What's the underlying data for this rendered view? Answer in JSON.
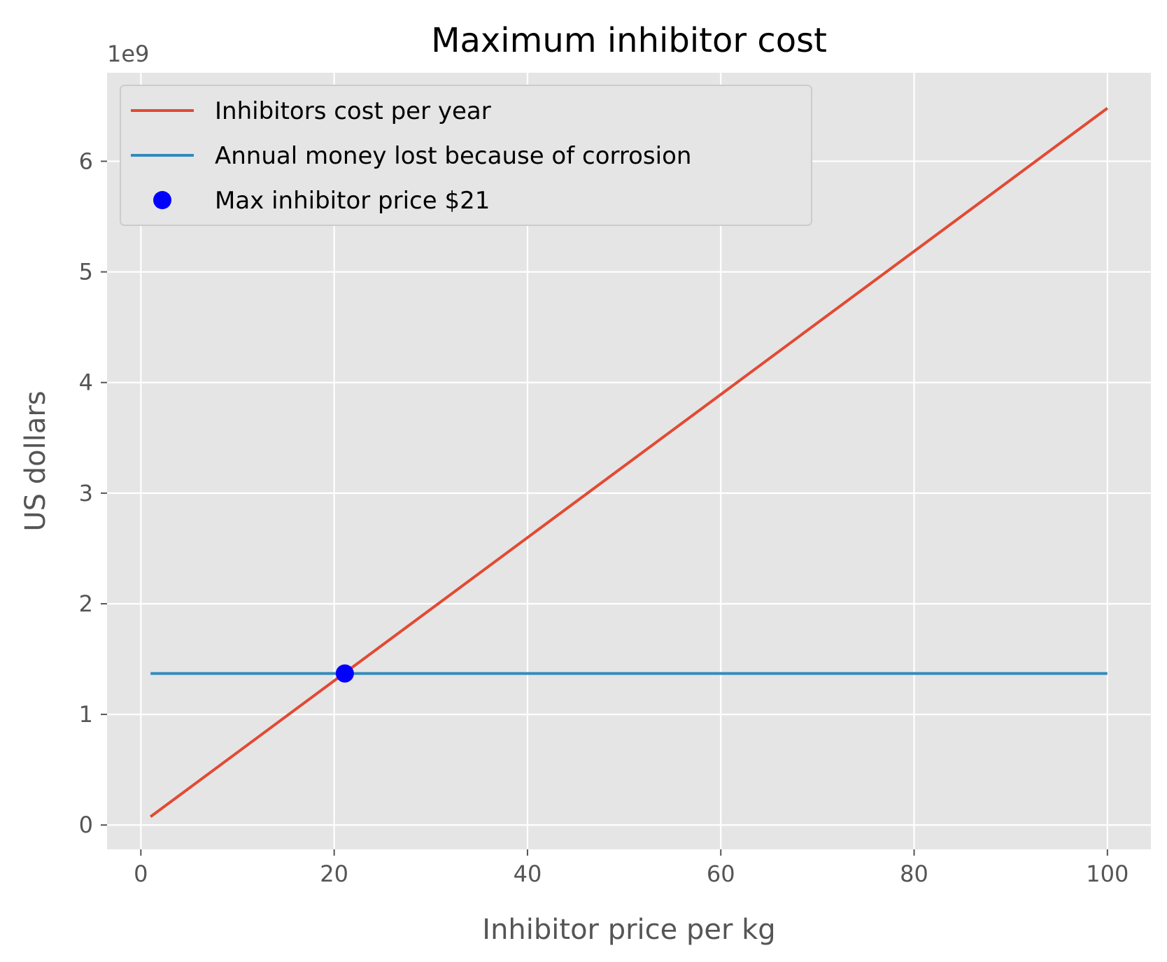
{
  "chart_data": {
    "type": "line",
    "title": "Maximum inhibitor cost",
    "xlabel": "Inhibitor price per kg",
    "ylabel": "US dollars",
    "y_offset_label": "1e9",
    "xlim": [
      -3.5,
      104.5
    ],
    "ylim": [
      -0.22,
      6.8
    ],
    "x_ticks": [
      0,
      20,
      40,
      60,
      80,
      100
    ],
    "y_ticks": [
      0,
      1,
      2,
      3,
      4,
      5,
      6
    ],
    "grid": true,
    "legend_position": "upper left",
    "series": [
      {
        "name": "Inhibitors cost per year",
        "kind": "line",
        "color": "#E24A33",
        "x": [
          1,
          100
        ],
        "y": [
          0.075,
          6.48
        ]
      },
      {
        "name": "Annual money lost because of corrosion",
        "kind": "line",
        "color": "#348ABD",
        "x": [
          1,
          100
        ],
        "y": [
          1.37,
          1.37
        ]
      },
      {
        "name": "Max inhibitor price $21",
        "kind": "point",
        "color": "#0000FF",
        "x": [
          21.1
        ],
        "y": [
          1.37
        ]
      }
    ],
    "colors": {
      "plot_background": "#E5E5E5",
      "grid": "#FFFFFF",
      "legend_background": "#E5E5E5",
      "legend_border": "#CCCCCC"
    }
  }
}
